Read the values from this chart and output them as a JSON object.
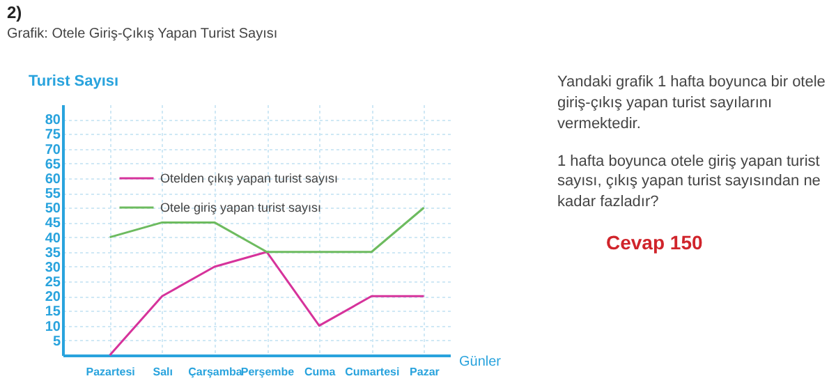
{
  "chart_data": {
    "type": "line",
    "title": "2)",
    "subtitle": "Grafik: Otele Giriş-Çıkış Yapan Turist Sayısı",
    "ylabel": "Turist Sayısı",
    "xlabel": "Günler",
    "categories": [
      "Pazartesi",
      "Salı",
      "Çarşamba",
      "Perşembe",
      "Cuma",
      "Cumartesi",
      "Pazar"
    ],
    "series": [
      {
        "name": "Otelden çıkış yapan turist sayısı",
        "color": "#d6339b",
        "values": [
          0,
          20,
          30,
          35,
          10,
          20,
          20
        ]
      },
      {
        "name": "Otele giriş yapan turist sayısı",
        "color": "#6dbb5f",
        "values": [
          40,
          45,
          45,
          35,
          35,
          35,
          50
        ]
      }
    ],
    "ylim": [
      0,
      85
    ],
    "yticks": [
      5,
      10,
      15,
      20,
      25,
      30,
      35,
      40,
      45,
      50,
      55,
      60,
      65,
      70,
      75,
      80
    ],
    "grid": true,
    "legend": "top left",
    "marker": "none",
    "line_style": "solid",
    "annotations": [
      "Yandaki grafik 1 hafta boyunca bir otele giriş-çıkış yapan turist sayılarını vermektedir.",
      "1 hafta boyunca otele giriş yapan turist sayısı, çıkış yapan turist sayısından ne kadar fazladır?",
      "Cevap 150"
    ]
  }
}
